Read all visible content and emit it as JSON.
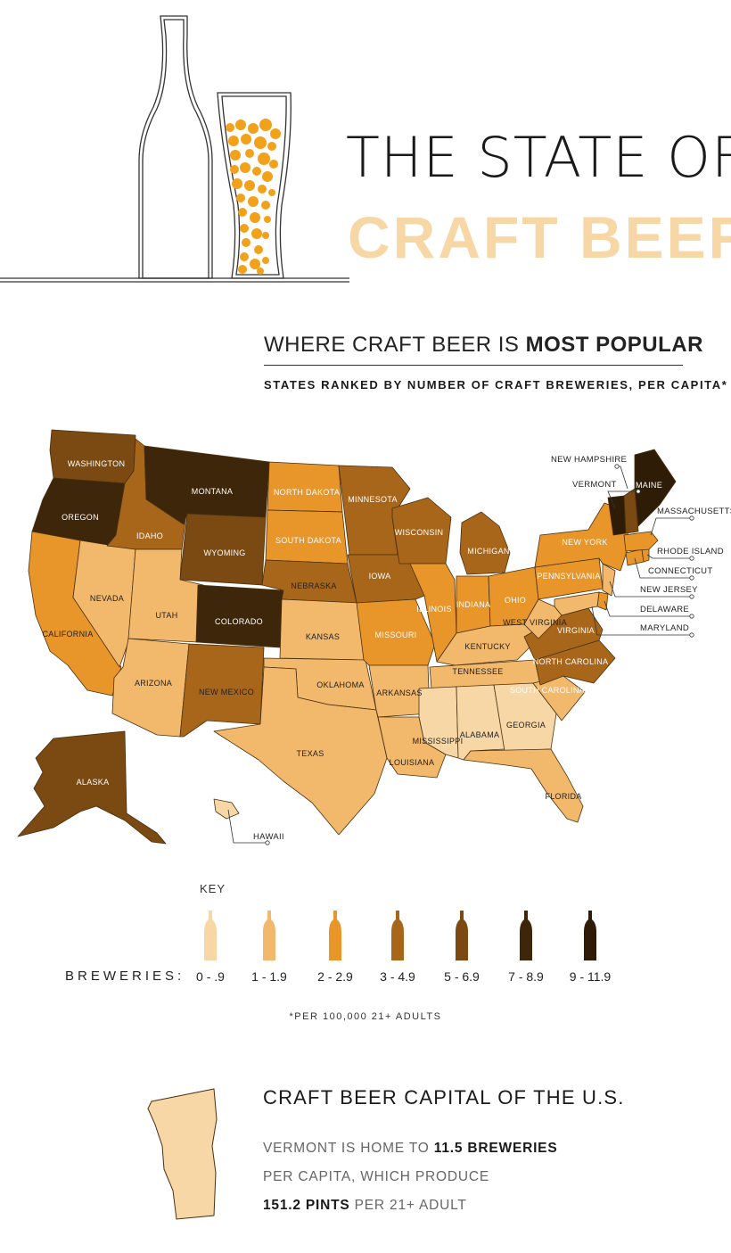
{
  "header": {
    "title_line1": "THE STATE OF",
    "title_line2": "CRAFT BEER"
  },
  "subheader": {
    "heading_pre": "WHERE CRAFT BEER IS ",
    "heading_bold": "MOST POPULAR",
    "subheading": "STATES RANKED BY NUMBER OF CRAFT BREWERIES, PER CAPITA*"
  },
  "colors": {
    "tier0": "#f7d7a6",
    "tier1": "#f2b86b",
    "tier2": "#e8952a",
    "tier3": "#a8661a",
    "tier4": "#7a4a12",
    "tier5": "#3d2609",
    "tier6": "#2e1c07",
    "accent_orange": "#f2a11a"
  },
  "chart_data": {
    "type": "choropleth",
    "measure": "craft breweries per 100,000 21+ adults",
    "bins": [
      "0 - .9",
      "1 - 1.9",
      "2 - 2.9",
      "3 - 4.9",
      "5 - 6.9",
      "7 - 8.9",
      "9 - 11.9"
    ],
    "states": [
      {
        "name": "WASHINGTON",
        "tier": 4
      },
      {
        "name": "OREGON",
        "tier": 5
      },
      {
        "name": "CALIFORNIA",
        "tier": 2
      },
      {
        "name": "NEVADA",
        "tier": 1
      },
      {
        "name": "IDAHO",
        "tier": 3
      },
      {
        "name": "MONTANA",
        "tier": 5
      },
      {
        "name": "WYOMING",
        "tier": 4
      },
      {
        "name": "UTAH",
        "tier": 1
      },
      {
        "name": "ARIZONA",
        "tier": 1
      },
      {
        "name": "COLORADO",
        "tier": 5
      },
      {
        "name": "NEW MEXICO",
        "tier": 3
      },
      {
        "name": "NORTH DAKOTA",
        "tier": 2
      },
      {
        "name": "SOUTH DAKOTA",
        "tier": 2
      },
      {
        "name": "NEBRASKA",
        "tier": 3
      },
      {
        "name": "KANSAS",
        "tier": 1
      },
      {
        "name": "OKLAHOMA",
        "tier": 1
      },
      {
        "name": "TEXAS",
        "tier": 1
      },
      {
        "name": "MINNESOTA",
        "tier": 3
      },
      {
        "name": "IOWA",
        "tier": 3
      },
      {
        "name": "MISSOURI",
        "tier": 2
      },
      {
        "name": "ARKANSAS",
        "tier": 1
      },
      {
        "name": "LOUISIANA",
        "tier": 1
      },
      {
        "name": "WISCONSIN",
        "tier": 3
      },
      {
        "name": "ILLINOIS",
        "tier": 2
      },
      {
        "name": "MICHIGAN",
        "tier": 3
      },
      {
        "name": "INDIANA",
        "tier": 2
      },
      {
        "name": "OHIO",
        "tier": 2
      },
      {
        "name": "KENTUCKY",
        "tier": 1
      },
      {
        "name": "TENNESSEE",
        "tier": 1
      },
      {
        "name": "MISSISSIPPI",
        "tier": 0
      },
      {
        "name": "ALABAMA",
        "tier": 0
      },
      {
        "name": "GEORGIA",
        "tier": 0
      },
      {
        "name": "FLORIDA",
        "tier": 1
      },
      {
        "name": "SOUTH CAROLINA",
        "tier": 1
      },
      {
        "name": "NORTH CAROLINA",
        "tier": 3
      },
      {
        "name": "VIRGINIA",
        "tier": 3
      },
      {
        "name": "WEST VIRGINIA",
        "tier": 1
      },
      {
        "name": "PENNSYLVANIA",
        "tier": 2
      },
      {
        "name": "NEW YORK",
        "tier": 2
      },
      {
        "name": "NEW JERSEY",
        "tier": 1
      },
      {
        "name": "DELAWARE",
        "tier": 2
      },
      {
        "name": "MARYLAND",
        "tier": 1
      },
      {
        "name": "CONNECTICUT",
        "tier": 2
      },
      {
        "name": "RHODE ISLAND",
        "tier": 2
      },
      {
        "name": "MASSACHUSETTS",
        "tier": 2
      },
      {
        "name": "VERMONT",
        "tier": 6
      },
      {
        "name": "NEW HAMPSHIRE",
        "tier": 4
      },
      {
        "name": "MAINE",
        "tier": 6
      },
      {
        "name": "ALASKA",
        "tier": 4
      },
      {
        "name": "HAWAII",
        "tier": 0
      }
    ]
  },
  "key": {
    "title": "KEY",
    "breweries_label": "BREWERIES:",
    "ranges": [
      "0 - .9",
      "1 - 1.9",
      "2 - 2.9",
      "3 - 4.9",
      "5 - 6.9",
      "7 - 8.9",
      "9 - 11.9"
    ],
    "footnote": "*PER 100,000 21+ ADULTS"
  },
  "capital": {
    "title": "CRAFT BEER CAPITAL OF THE U.S.",
    "line1_pre": "VERMONT IS HOME TO ",
    "line1_bold": "11.5 BREWERIES",
    "line2": "PER CAPITA, WHICH PRODUCE",
    "line3_bold": "151.2 PINTS",
    "line3_post": " PER 21+ ADULT"
  }
}
